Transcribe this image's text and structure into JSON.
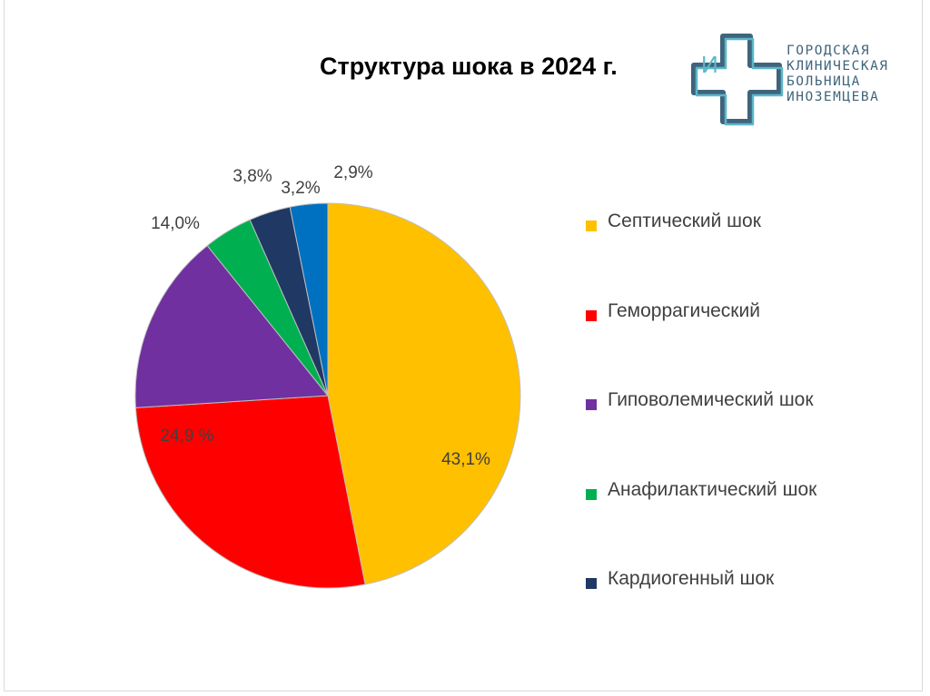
{
  "title": "Структура шока в 2024 г.",
  "logo": {
    "letter": "И",
    "lines": [
      "ГОРОДСКАЯ",
      "КЛИНИЧЕСКАЯ",
      "БОЛЬНИЦА",
      "ИНОЗЕМЦЕВА"
    ],
    "color": "#3f647b",
    "accent": "#5bb7c9"
  },
  "chart_data": {
    "type": "pie",
    "title": "Структура шока в 2024 г.",
    "slices": [
      {
        "label": "Септический шок",
        "value": 43.1,
        "display": "43,1%",
        "color": "#ffc000",
        "in_legend": true
      },
      {
        "label": "Геморрагический",
        "value": 24.9,
        "display": "24,9 %",
        "color": "#ff0000",
        "in_legend": true
      },
      {
        "label": "Гиповолемический шок",
        "value": 14.0,
        "display": "14,0%",
        "color": "#7030a0",
        "in_legend": true
      },
      {
        "label": "Анафилактический шок",
        "value": 3.8,
        "display": "3,8%",
        "color": "#00b050",
        "in_legend": true
      },
      {
        "label": "Кардиогенный шок",
        "value": 3.2,
        "display": "3,2%",
        "color": "#1f3864",
        "in_legend": true
      },
      {
        "label": "",
        "value": 2.9,
        "display": "2,9%",
        "color": "#0070c0",
        "in_legend": false
      }
    ],
    "start_angle": "top, clockwise",
    "legend_position": "right"
  }
}
